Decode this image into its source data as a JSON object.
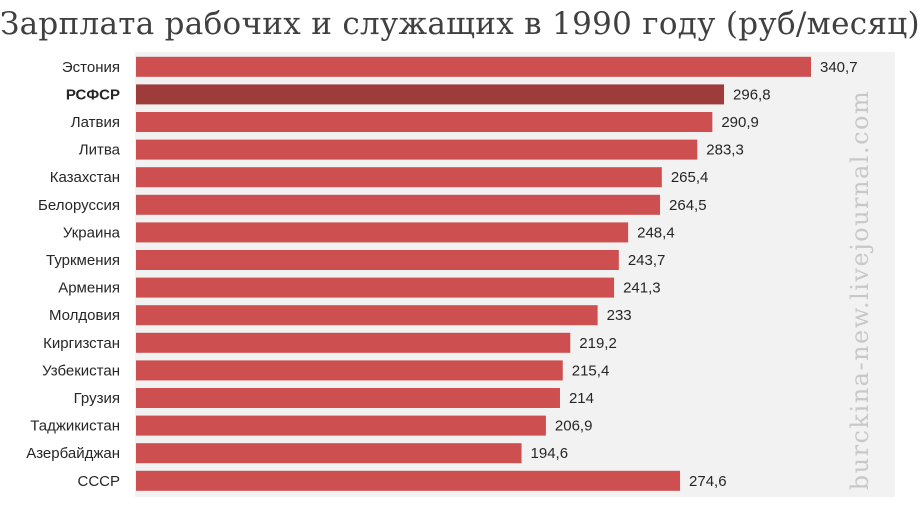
{
  "chart_data": {
    "type": "bar",
    "orientation": "horizontal",
    "title": "Зарплата рабочих и служащих в 1990 году (руб/месяц)",
    "categories": [
      "Эстония",
      "РСФСР",
      "Латвия",
      "Литва",
      "Казахстан",
      "Белоруссия",
      "Украина",
      "Туркмения",
      "Армения",
      "Молдовия",
      "Киргизстан",
      "Узбекистан",
      "Грузия",
      "Таджикистан",
      "Азербайджан",
      "СССР"
    ],
    "values": [
      340.7,
      296.8,
      290.9,
      283.3,
      265.4,
      264.5,
      248.4,
      243.7,
      241.3,
      233,
      219.2,
      215.4,
      214,
      206.9,
      194.6,
      274.6
    ],
    "value_labels": [
      "340,7",
      "296,8",
      "290,9",
      "283,3",
      "265,4",
      "264,5",
      "248,4",
      "243,7",
      "241,3",
      "233",
      "219,2",
      "215,4",
      "214",
      "206,9",
      "194,6",
      "274,6"
    ],
    "highlight_category": "РСФСР",
    "bar_color": "#cd4f4f",
    "highlight_color": "#9e3b3b",
    "plot_background": "#f2f2f2",
    "xlim": [
      0,
      340.7
    ],
    "grid": false,
    "legend": false
  },
  "watermark": "burckina-new.livejournal.com"
}
